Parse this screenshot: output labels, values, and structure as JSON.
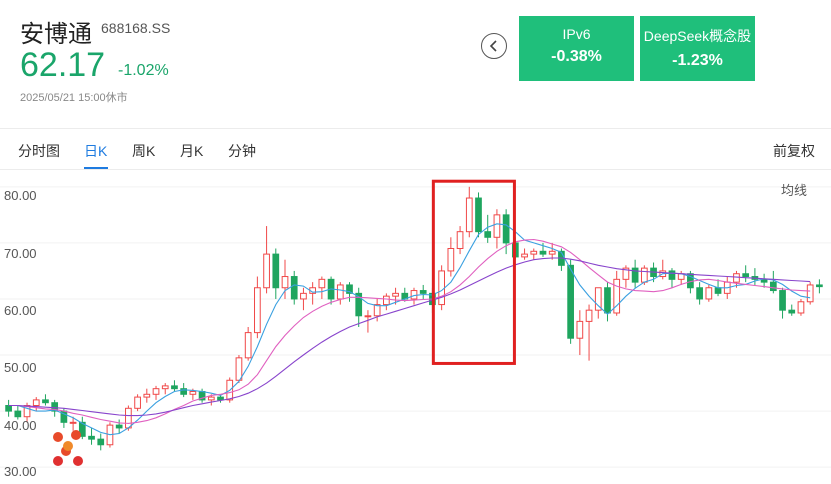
{
  "stock": {
    "name": "安博通",
    "code": "688168.SS",
    "price": "62.17",
    "change_pct": "-1.02%",
    "timestamp": "2025/05/21 15:00休市"
  },
  "sectors": [
    {
      "name": "IPv6",
      "change": "-0.38%"
    },
    {
      "name": "DeepSeek概念股",
      "change": "-1.23%"
    }
  ],
  "colors": {
    "up": "#f04848",
    "down": "#1fa55f",
    "accent": "#1e7be0",
    "sector_bg": "#1fbf7b",
    "highlight": "#e02020"
  },
  "icons": {
    "back": "chevron-left-icon",
    "logo": "app-logo-icon"
  },
  "tabs": [
    {
      "label": "分时图",
      "active": false
    },
    {
      "label": "日K",
      "active": true
    },
    {
      "label": "周K",
      "active": false
    },
    {
      "label": "月K",
      "active": false
    },
    {
      "label": "分钟",
      "active": false
    }
  ],
  "adjust_label": "前复权",
  "ma_label": "均线",
  "chart_data": {
    "type": "candlestick",
    "y_ticks": [
      "80.00",
      "70.00",
      "60.00",
      "50.00",
      "40.00",
      "30.00"
    ],
    "ylim": [
      27,
      83
    ],
    "candles": [
      [
        41,
        42,
        39,
        40
      ],
      [
        40,
        41,
        38.5,
        39
      ],
      [
        39,
        41.5,
        38,
        41
      ],
      [
        41,
        42.5,
        40,
        42
      ],
      [
        42,
        43,
        41,
        41.5
      ],
      [
        41.5,
        42,
        39,
        40
      ],
      [
        40,
        40.5,
        37,
        38
      ],
      [
        38,
        39,
        36.5,
        38
      ],
      [
        38,
        39,
        35,
        35.5
      ],
      [
        35.5,
        37,
        34,
        35
      ],
      [
        35,
        36,
        33,
        34
      ],
      [
        34,
        38,
        33.5,
        37.5
      ],
      [
        37.5,
        38.5,
        36,
        37
      ],
      [
        37,
        41,
        36.5,
        40.5
      ],
      [
        40.5,
        43,
        40,
        42.5
      ],
      [
        42.5,
        44,
        41.5,
        43
      ],
      [
        43,
        44.5,
        42,
        44
      ],
      [
        44,
        45,
        43,
        44.5
      ],
      [
        44.5,
        45.5,
        43.5,
        44
      ],
      [
        44,
        45,
        42.5,
        43
      ],
      [
        43,
        44,
        42,
        43.5
      ],
      [
        43.5,
        44,
        41.5,
        42
      ],
      [
        42,
        43,
        41,
        42.5
      ],
      [
        42.5,
        43,
        41.5,
        42
      ],
      [
        42,
        46,
        41.5,
        45.5
      ],
      [
        45.5,
        50,
        45,
        49.5
      ],
      [
        49.5,
        55,
        49,
        54
      ],
      [
        54,
        64,
        53,
        62
      ],
      [
        62,
        73,
        61,
        68
      ],
      [
        68,
        69,
        60,
        62
      ],
      [
        62,
        67,
        60,
        64
      ],
      [
        64,
        65,
        59,
        60
      ],
      [
        60,
        62,
        58,
        61
      ],
      [
        61,
        63,
        59,
        62
      ],
      [
        62,
        64,
        60,
        63.5
      ],
      [
        63.5,
        64,
        59,
        60
      ],
      [
        60,
        63,
        59,
        62.5
      ],
      [
        62.5,
        63,
        59.5,
        61
      ],
      [
        61,
        62,
        55,
        57
      ],
      [
        57,
        58,
        54,
        57
      ],
      [
        57,
        60,
        56,
        59
      ],
      [
        59,
        61,
        58,
        60.5
      ],
      [
        60.5,
        62,
        59,
        61
      ],
      [
        61,
        62,
        59.5,
        60
      ],
      [
        60,
        62,
        59,
        61.5
      ],
      [
        61.5,
        62.5,
        60,
        61
      ],
      [
        61,
        62,
        57.5,
        59
      ],
      [
        59,
        66,
        58,
        65
      ],
      [
        65,
        71,
        64,
        69
      ],
      [
        69,
        73,
        68,
        72
      ],
      [
        72,
        80,
        71,
        78
      ],
      [
        78,
        79,
        71,
        72
      ],
      [
        72,
        75,
        70,
        71
      ],
      [
        71,
        76,
        69,
        75
      ],
      [
        75,
        76,
        68,
        70
      ],
      [
        70,
        71,
        67,
        67.5
      ],
      [
        67.5,
        69,
        67,
        68
      ],
      [
        68,
        69,
        67,
        68.5
      ],
      [
        68.5,
        70,
        67.5,
        68
      ],
      [
        68,
        70,
        67,
        68.5
      ],
      [
        68.5,
        69,
        65,
        66
      ],
      [
        66,
        67,
        52,
        53
      ],
      [
        53,
        58,
        50,
        56
      ],
      [
        56,
        59,
        49,
        58
      ],
      [
        58,
        62,
        56.5,
        62
      ],
      [
        62,
        63,
        56,
        57.5
      ],
      [
        57.5,
        65,
        57,
        63.5
      ],
      [
        63.5,
        66,
        62,
        65.5
      ],
      [
        65.5,
        67,
        62,
        63
      ],
      [
        63,
        66,
        62.5,
        65.5
      ],
      [
        65.5,
        66.5,
        63,
        64
      ],
      [
        64,
        67,
        63.5,
        65
      ],
      [
        65,
        65.5,
        62,
        63.5
      ],
      [
        63.5,
        65,
        62.5,
        64.5
      ],
      [
        64.5,
        65,
        61,
        62
      ],
      [
        62,
        63,
        59,
        60
      ],
      [
        60,
        62.5,
        59.5,
        62
      ],
      [
        62,
        63.5,
        60.5,
        61
      ],
      [
        61,
        64,
        60,
        63
      ],
      [
        63,
        65,
        62,
        64.5
      ],
      [
        64.5,
        66,
        63,
        64
      ],
      [
        64,
        65.5,
        62.5,
        63.5
      ],
      [
        63.5,
        64.5,
        62,
        63
      ],
      [
        63,
        65,
        61,
        61.5
      ],
      [
        61.5,
        62,
        56.5,
        58
      ],
      [
        58,
        59,
        57,
        57.5
      ],
      [
        57.5,
        60,
        57,
        59.5
      ],
      [
        59.5,
        63,
        59,
        62.5
      ],
      [
        62.5,
        63.5,
        61,
        62.2
      ]
    ],
    "ma_series": [
      {
        "color": "#3aa0e0",
        "values": [
          41,
          41,
          40.5,
          40,
          40,
          40.2,
          39.5,
          38.8,
          37.8,
          37,
          36.2,
          35.8,
          36,
          37,
          38.4,
          40,
          41.5,
          42.6,
          43.5,
          43.8,
          43.7,
          43.5,
          43.2,
          42.8,
          43.7,
          45.3,
          48,
          51.5,
          55.5,
          59,
          61.5,
          62.5,
          62.3,
          61.2,
          61.3,
          61.8,
          61.6,
          61.3,
          60.4,
          59.2,
          58.8,
          58.8,
          59.4,
          60,
          60.6,
          60.8,
          60.7,
          61.5,
          63,
          65.6,
          68.6,
          71.5,
          72.8,
          73.4,
          73.2,
          72,
          70.5,
          70,
          69.5,
          69,
          68.3,
          65.3,
          62.5,
          60.5,
          58.8,
          57.3,
          58.8,
          60.5,
          61.9,
          63,
          63.5,
          64.5,
          64.6,
          64.5,
          64,
          63.3,
          62.6,
          62,
          62,
          62.4,
          62.6,
          63.2,
          63.6,
          63.4,
          62.6,
          61.4,
          60.5,
          60.2
        ]
      },
      {
        "color": "#e060c0",
        "values": [
          41,
          41,
          40.8,
          40.6,
          40.4,
          40.3,
          40,
          39.6,
          39.3,
          38.9,
          38.5,
          38.2,
          37.9,
          37.8,
          38,
          38.3,
          38.8,
          39.5,
          40.3,
          41,
          41.8,
          42.3,
          42.8,
          43,
          43.3,
          43.8,
          44.8,
          46.5,
          49,
          51.5,
          53.5,
          55.2,
          56.7,
          57.8,
          58.7,
          59.4,
          59.9,
          60.3,
          60.3,
          60.2,
          60.1,
          60,
          59.8,
          59.7,
          59.8,
          59.9,
          60,
          60.5,
          61.3,
          62.5,
          64,
          65.7,
          67.2,
          68.5,
          69.5,
          70.2,
          70.5,
          70.6,
          70.3,
          69.8,
          69.3,
          68.3,
          67,
          65.6,
          64.3,
          63,
          62.3,
          61.8,
          61.5,
          61.4,
          61.3,
          61.5,
          62,
          62.6,
          63.1,
          63.4,
          63.5,
          63.3,
          63,
          62.8,
          62.6,
          62.4,
          62.2,
          62,
          61.8,
          61.6,
          61.5,
          61.4
        ]
      },
      {
        "color": "#8844cc",
        "values": [
          41,
          41,
          40.9,
          40.8,
          40.7,
          40.6,
          40.5,
          40.3,
          40.1,
          39.9,
          39.7,
          39.5,
          39.3,
          39.2,
          39.2,
          39.3,
          39.5,
          39.8,
          40.2,
          40.6,
          41,
          41.3,
          41.6,
          41.9,
          42.2,
          42.6,
          43.2,
          44,
          45,
          46.2,
          47.5,
          48.8,
          50,
          51.2,
          52.3,
          53.3,
          54.2,
          55,
          55.6,
          56.2,
          56.8,
          57.3,
          57.8,
          58.3,
          58.8,
          59.3,
          59.8,
          60.3,
          60.9,
          61.6,
          62.4,
          63.2,
          64,
          64.8,
          65.5,
          66.1,
          66.6,
          67,
          67.2,
          67.3,
          67.3,
          67.1,
          66.8,
          66.4,
          66,
          65.7,
          65.4,
          65.2,
          65,
          64.9,
          64.8,
          64.7,
          64.6,
          64.5,
          64.4,
          64.3,
          64.2,
          64.1,
          64,
          63.9,
          63.8,
          63.7,
          63.6,
          63.5,
          63.4,
          63.3,
          63.2,
          63.1
        ]
      }
    ]
  }
}
